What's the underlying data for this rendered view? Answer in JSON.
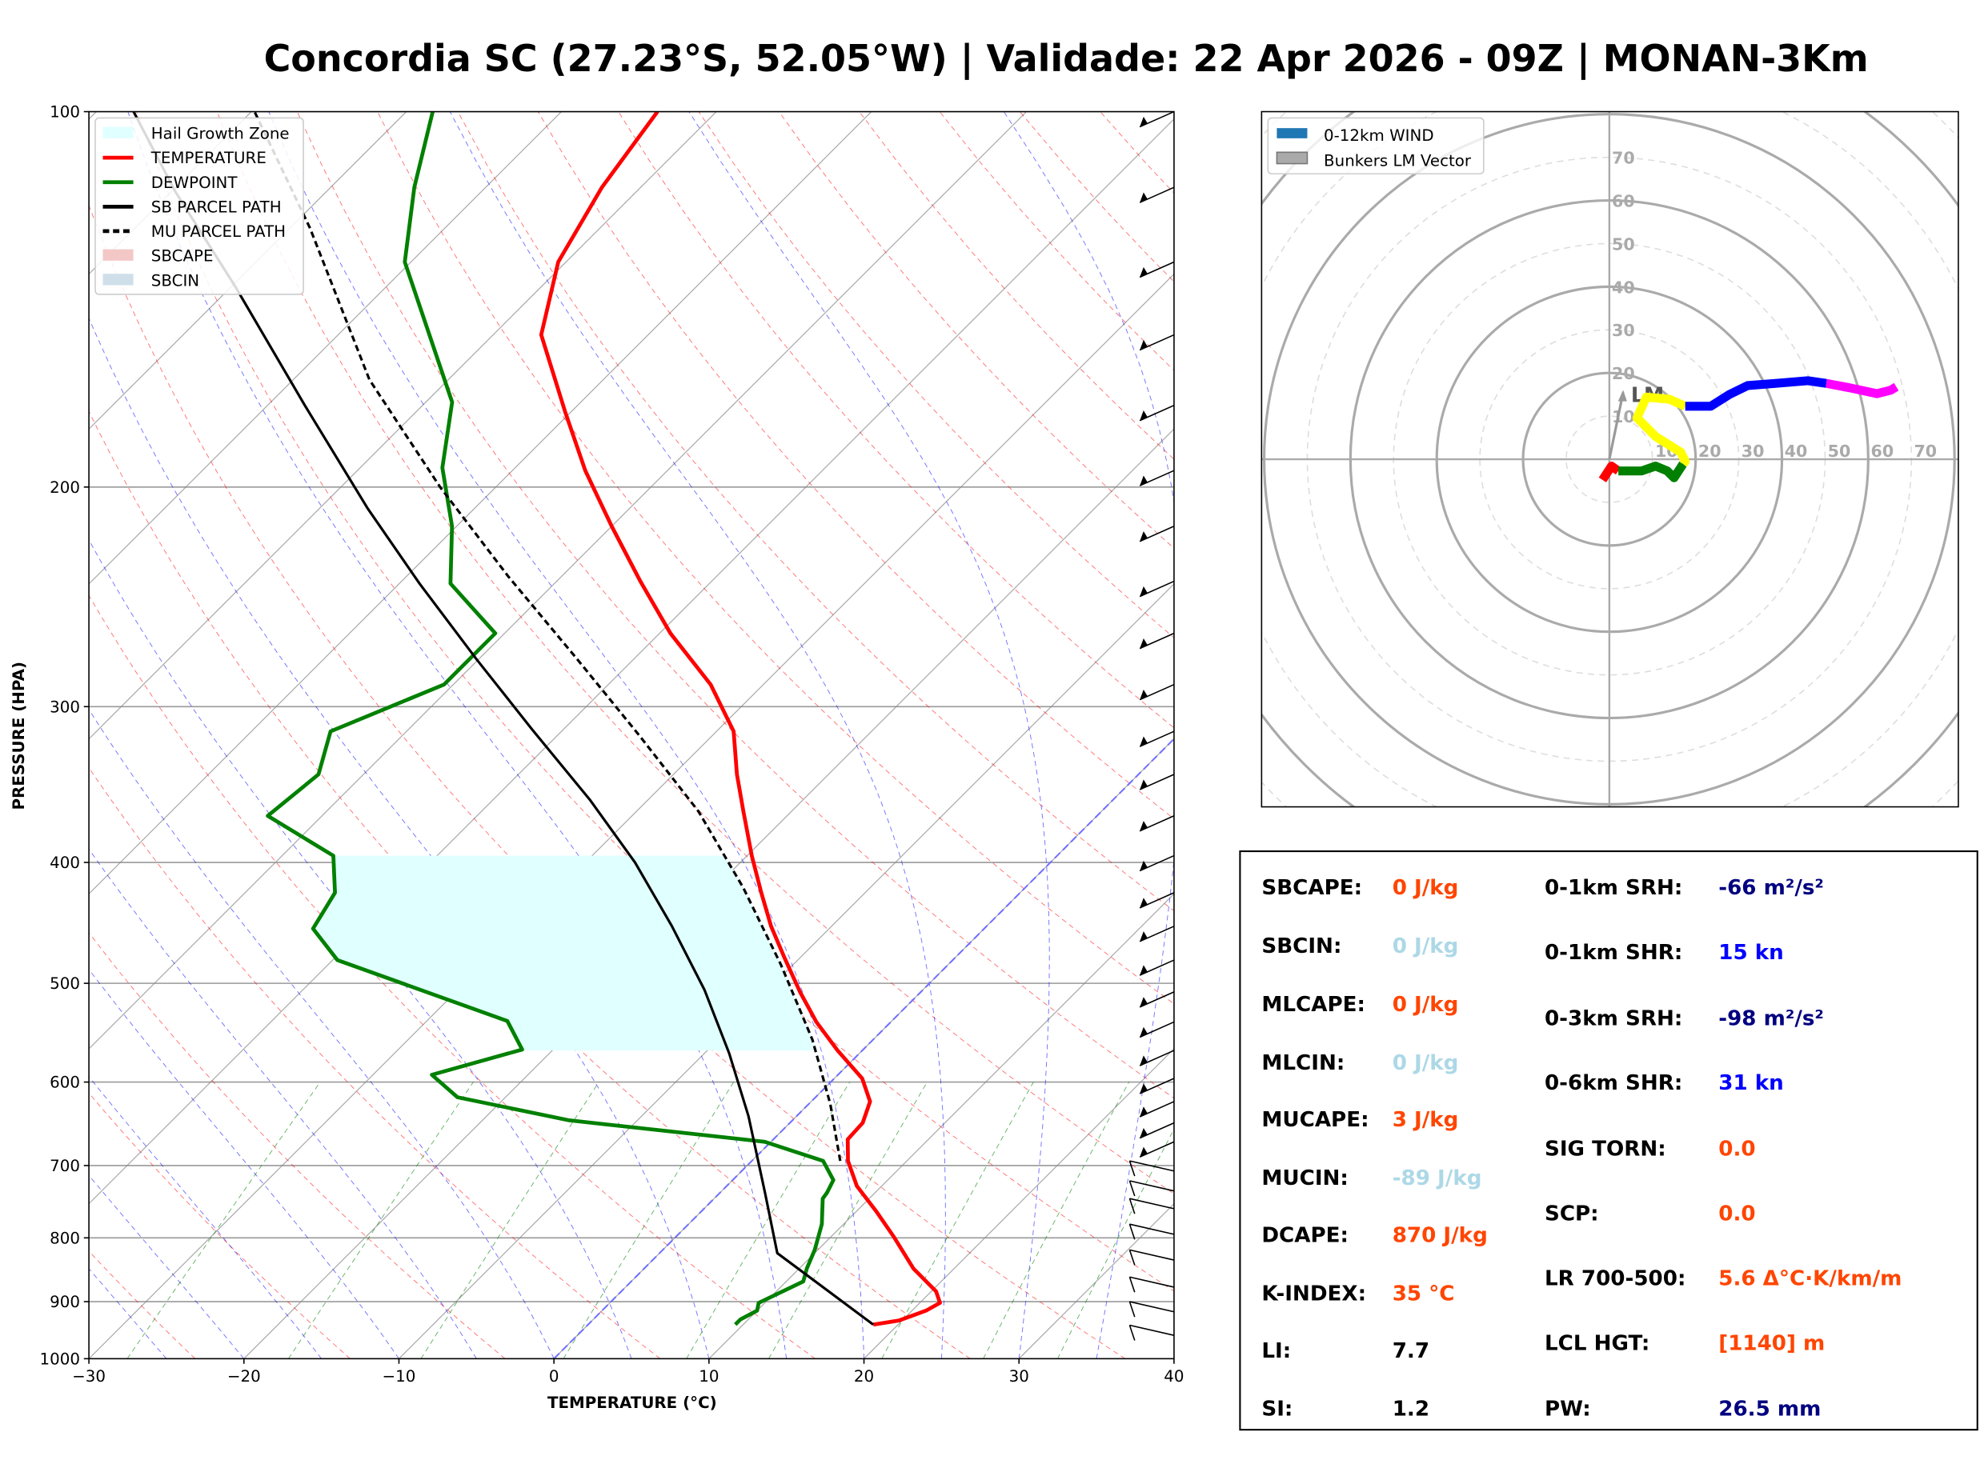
{
  "title": "Concordia SC (27.23°S, 52.05°W) | Validade: 22 Apr 2026 - 09Z | MONAN-3Km",
  "chart_data": [
    {
      "type": "line",
      "chart": "skew-t log-p",
      "xlabel": "TEMPERATURE (°C)",
      "ylabel": "PRESSURE (HPA)",
      "xlim": [
        -30,
        40
      ],
      "ylim": [
        1000,
        100
      ],
      "y_scale": "log",
      "grid": true,
      "xticks": [
        "−30",
        "−20",
        "−10",
        "0",
        "10",
        "20",
        "30",
        "40"
      ],
      "yticks": [
        "100",
        "200",
        "300",
        "400",
        "500",
        "600",
        "700",
        "800",
        "900",
        "1000"
      ],
      "legend_position": "top-left",
      "legend": [
        {
          "label": "Hail Growth Zone",
          "color": "#e0ffff",
          "kind": "patch"
        },
        {
          "label": "TEMPERATURE",
          "color": "#ff0000",
          "kind": "line"
        },
        {
          "label": "DEWPOINT",
          "color": "#008000",
          "kind": "line"
        },
        {
          "label": "SB PARCEL PATH",
          "color": "#000000",
          "kind": "line"
        },
        {
          "label": "MU PARCEL PATH",
          "color": "#000000",
          "kind": "dashed"
        },
        {
          "label": "SBCAPE",
          "color": "#f4c7c7",
          "kind": "patch"
        },
        {
          "label": "SBCIN",
          "color": "#cfdfea",
          "kind": "patch"
        }
      ],
      "series": [
        {
          "name": "TEMPERATURE",
          "color": "#ff0000",
          "points": [
            [
              939,
              18.4
            ],
            [
              932,
              19.8
            ],
            [
              915,
              20.9
            ],
            [
              902,
              21.3
            ],
            [
              883,
              20.3
            ],
            [
              847,
              17.4
            ],
            [
              799,
              14.1
            ],
            [
              762,
              11.3
            ],
            [
              727,
              8.4
            ],
            [
              694,
              6.2
            ],
            [
              667,
              4.8
            ],
            [
              647,
              4.7
            ],
            [
              622,
              3.8
            ],
            [
              596,
              1.8
            ],
            [
              566,
              -1.6
            ],
            [
              537,
              -4.8
            ],
            [
              508,
              -7.8
            ],
            [
              477,
              -11.0
            ],
            [
              450,
              -13.9
            ],
            [
              423,
              -16.7
            ],
            [
              395,
              -19.7
            ],
            [
              364,
              -23.1
            ],
            [
              340,
              -25.9
            ],
            [
              314,
              -28.9
            ],
            [
              288,
              -33.4
            ],
            [
              262,
              -39.3
            ],
            [
              238,
              -44.6
            ],
            [
              215,
              -50.0
            ],
            [
              194,
              -55.3
            ],
            [
              174,
              -60.4
            ],
            [
              151,
              -66.9
            ],
            [
              132,
              -70.5
            ],
            [
              115,
              -72.5
            ],
            [
              100,
              -73.8
            ]
          ]
        },
        {
          "name": "DEWPOINT",
          "color": "#008000",
          "points": [
            [
              939,
              9.5
            ],
            [
              930,
              9.5
            ],
            [
              915,
              10.0
            ],
            [
              902,
              9.6
            ],
            [
              867,
              11.1
            ],
            [
              847,
              10.5
            ],
            [
              818,
              9.8
            ],
            [
              780,
              8.6
            ],
            [
              744,
              7.0
            ],
            [
              736,
              6.9
            ],
            [
              719,
              6.5
            ],
            [
              694,
              4.6
            ],
            [
              670,
              -0.4
            ],
            [
              644,
              -14.4
            ],
            [
              617,
              -23.1
            ],
            [
              592,
              -26.2
            ],
            [
              565,
              -22.0
            ],
            [
              536,
              -24.8
            ],
            [
              479,
              -39.7
            ],
            [
              452,
              -43.3
            ],
            [
              423,
              -44.2
            ],
            [
              395,
              -46.7
            ],
            [
              367,
              -53.5
            ],
            [
              340,
              -52.9
            ],
            [
              314,
              -54.9
            ],
            [
              288,
              -50.6
            ],
            [
              262,
              -50.6
            ],
            [
              239,
              -56.7
            ],
            [
              215,
              -60.3
            ],
            [
              193,
              -64.7
            ],
            [
              171,
              -68.3
            ],
            [
              132,
              -80.4
            ],
            [
              115,
              -84.6
            ],
            [
              100,
              -88.3
            ]
          ]
        },
        {
          "name": "SB PARCEL PATH",
          "color": "#000000",
          "points": [
            [
              939,
              18.4
            ],
            [
              823,
              7.6
            ],
            [
              736,
              2.9
            ],
            [
              639,
              -3.1
            ],
            [
              569,
              -8.4
            ],
            [
              506,
              -14.1
            ],
            [
              450,
              -20.3
            ],
            [
              400,
              -26.8
            ],
            [
              356,
              -33.8
            ],
            [
              313,
              -42.0
            ],
            [
              275,
              -50.1
            ],
            [
              239,
              -58.7
            ],
            [
              208,
              -66.9
            ],
            [
              172,
              -77.6
            ],
            [
              138,
              -89.8
            ],
            [
              116,
              -99.7
            ],
            [
              100,
              -107.6
            ]
          ]
        },
        {
          "name": "MU PARCEL PATH",
          "color": "#000000",
          "dashed": true,
          "points": [
            [
              694,
              5.7
            ],
            [
              625,
              1.4
            ],
            [
              555,
              -3.9
            ],
            [
              483,
              -10.8
            ],
            [
              419,
              -18.2
            ],
            [
              364,
              -26.0
            ],
            [
              317,
              -34.6
            ],
            [
              275,
              -43.6
            ],
            [
              236,
              -53.4
            ],
            [
              200,
              -63.6
            ],
            [
              164,
              -75.1
            ],
            [
              124,
              -88.7
            ],
            [
              100,
              -99.8
            ]
          ]
        }
      ],
      "hail_growth_zone": {
        "p_bottom": 566,
        "p_top": 395
      }
    },
    {
      "type": "line",
      "chart": "hodograph",
      "legend_position": "top-left",
      "legend": [
        {
          "label": "0-12km WIND",
          "color": "#1f77b4"
        },
        {
          "label": "Bunkers LM Vector",
          "color": "#aaaaaa"
        }
      ],
      "ring_labels": [
        "10",
        "20",
        "30",
        "40",
        "50",
        "60",
        "70"
      ],
      "segments": [
        {
          "color": "#ff0000",
          "points": [
            [
              -1.6,
              -4.8
            ],
            [
              0.5,
              -1.6
            ],
            [
              2.1,
              -2.7
            ]
          ]
        },
        {
          "color": "#008000",
          "points": [
            [
              2.1,
              -2.7
            ],
            [
              7.5,
              -2.7
            ],
            [
              10.7,
              -1.6
            ],
            [
              13.4,
              -2.7
            ],
            [
              15.0,
              -4.3
            ],
            [
              17.1,
              -1.1
            ]
          ]
        },
        {
          "color": "#ffff00",
          "points": [
            [
              17.1,
              -1.1
            ],
            [
              17.6,
              -0.5
            ],
            [
              16.6,
              1.6
            ],
            [
              10.7,
              5.3
            ],
            [
              6.4,
              9.6
            ],
            [
              8.6,
              14.4
            ],
            [
              13.9,
              13.9
            ],
            [
              17.6,
              12.3
            ]
          ]
        },
        {
          "color": "#0000ff",
          "points": [
            [
              17.6,
              12.3
            ],
            [
              23.5,
              12.3
            ],
            [
              27.8,
              15.0
            ],
            [
              32.1,
              17.1
            ],
            [
              38.5,
              17.6
            ],
            [
              46.0,
              18.2
            ],
            [
              50.3,
              17.6
            ]
          ]
        },
        {
          "color": "#ff00ff",
          "points": [
            [
              50.3,
              17.6
            ],
            [
              55.6,
              16.6
            ],
            [
              62.0,
              15.2
            ],
            [
              65.2,
              16.0
            ],
            [
              66.5,
              16.8
            ]
          ]
        }
      ],
      "lm_vector": [
        3.2,
        15.5
      ],
      "lm_label": "LM"
    }
  ],
  "stats": {
    "left": [
      {
        "label": "SBCAPE:",
        "value": "0 J/kg",
        "color": "#ff4500"
      },
      {
        "label": "SBCIN:",
        "value": "0 J/kg",
        "color": "#add8e6"
      },
      {
        "label": "MLCAPE:",
        "value": "0 J/kg",
        "color": "#ff4500"
      },
      {
        "label": "MLCIN:",
        "value": "0 J/kg",
        "color": "#add8e6"
      },
      {
        "label": "MUCAPE:",
        "value": "3 J/kg",
        "color": "#ff4500"
      },
      {
        "label": "MUCIN:",
        "value": "-89 J/kg",
        "color": "#add8e6"
      },
      {
        "label": "DCAPE:",
        "value": "870 J/kg",
        "color": "#ff4500"
      },
      {
        "label": "K-INDEX:",
        "value": "35 °C",
        "color": "#ff4500"
      },
      {
        "label": "LI:",
        "value": "7.7",
        "color": "#000000"
      },
      {
        "label": "SI:",
        "value": "1.2",
        "color": "#000000"
      }
    ],
    "right": [
      {
        "label": "0-1km SRH:",
        "value": "-66 m²/s²",
        "color": "#000080"
      },
      {
        "label": "0-1km SHR:",
        "value": "15 kn",
        "color": "#0000ff"
      },
      {
        "label": "0-3km SRH:",
        "value": "-98 m²/s²",
        "color": "#000080"
      },
      {
        "label": "0-6km SHR:",
        "value": "31 kn",
        "color": "#0000ff"
      },
      {
        "label": "SIG TORN:",
        "value": "0.0",
        "color": "#ff4500"
      },
      {
        "label": "SCP:",
        "value": "0.0",
        "color": "#ff4500"
      },
      {
        "label": "LR 700-500:",
        "value": "5.6 Δ°C·K/km/m",
        "color": "#ff4500"
      },
      {
        "label": "LCL HGT:",
        "value": "[1140] m",
        "color": "#ff4500"
      },
      {
        "label": "PW:",
        "value": "26.5 mm",
        "color": "#000080"
      }
    ]
  }
}
